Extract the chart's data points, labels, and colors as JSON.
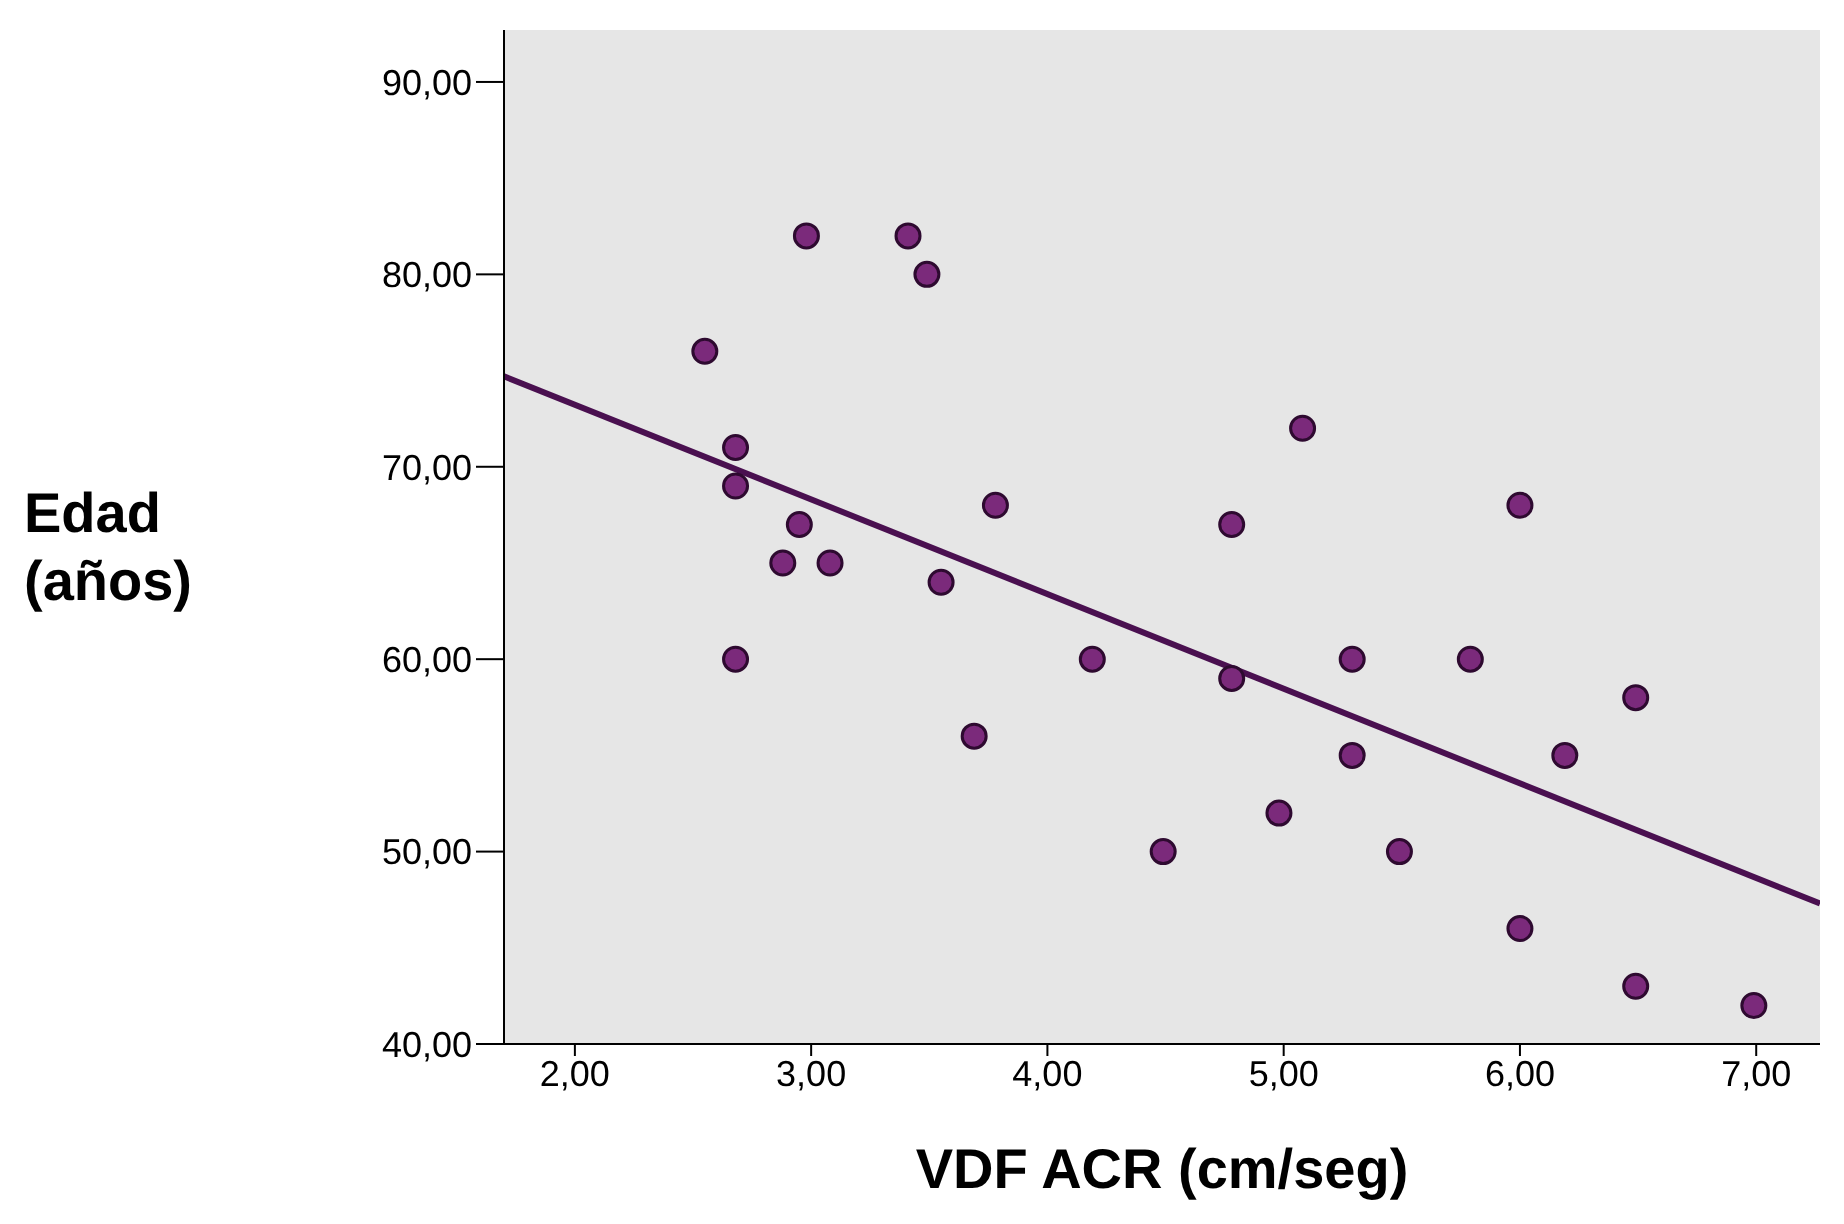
{
  "chart_data": {
    "type": "scatter",
    "xlabel": "VDF ACR (cm/seg)",
    "ylabel": "Edad (años)",
    "x": [
      2.55,
      2.98,
      3.41,
      3.49,
      2.68,
      2.68,
      2.95,
      2.88,
      3.08,
      2.68,
      3.55,
      3.69,
      3.78,
      4.19,
      4.49,
      4.78,
      4.78,
      4.98,
      5.08,
      5.29,
      5.29,
      5.49,
      5.79,
      6.0,
      6.19,
      6.49,
      6.0,
      6.49,
      6.99
    ],
    "series": [
      {
        "marker": "circle",
        "color": "#7b2a7b",
        "values": [
          76,
          82,
          82,
          80,
          71,
          69,
          67,
          65,
          65,
          60,
          64,
          56,
          68,
          60,
          50,
          59,
          67,
          52,
          72,
          60,
          55,
          50,
          60,
          68,
          55,
          58,
          46,
          43,
          42
        ]
      },
      {
        "type": "line",
        "marker": "none",
        "color": "#4a1050",
        "x": [
          1.7,
          7.27
        ],
        "values": [
          74.7,
          47.3
        ]
      }
    ],
    "xlim": [
      1.7,
      7.27
    ],
    "ylim": [
      40,
      92.7
    ],
    "xticks": [
      {
        "value": 2,
        "label": "2,00"
      },
      {
        "value": 3,
        "label": "3,00"
      },
      {
        "value": 4,
        "label": "4,00"
      },
      {
        "value": 5,
        "label": "5,00"
      },
      {
        "value": 6,
        "label": "6,00"
      },
      {
        "value": 7,
        "label": "7,00"
      }
    ],
    "yticks": [
      {
        "value": 40,
        "label": "40,00"
      },
      {
        "value": 50,
        "label": "50,00"
      },
      {
        "value": 60,
        "label": "60,00"
      },
      {
        "value": 70,
        "label": "70,00"
      },
      {
        "value": 80,
        "label": "80,00"
      },
      {
        "value": 90,
        "label": "90,00"
      }
    ],
    "grid": false,
    "legend": false,
    "line_style": "solid"
  }
}
